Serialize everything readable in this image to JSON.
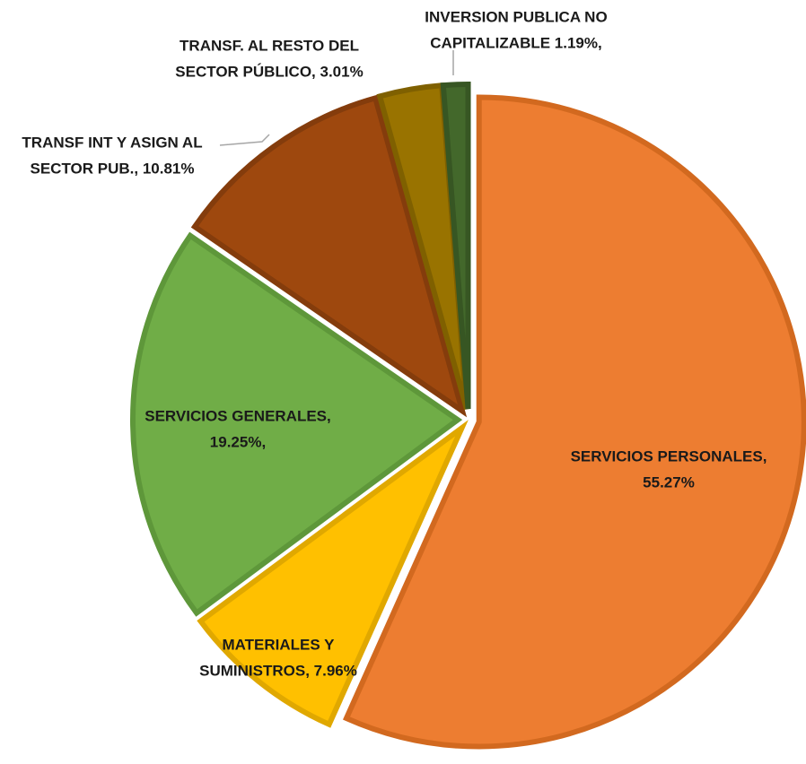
{
  "chart_data": {
    "type": "pie",
    "values": [
      55.27,
      7.96,
      19.25,
      10.81,
      3.01,
      1.19
    ],
    "value_labels": [
      [
        "SERVICIOS PERSONALES,",
        "55.27%"
      ],
      [
        "MATERIALES Y",
        "SUMINISTROS, 7.96%"
      ],
      [
        "SERVICIOS GENERALES,",
        "19.25%,"
      ],
      [
        "TRANSF INT Y ASIGN AL",
        "SECTOR PUB., 10.81%"
      ],
      [
        "TRANSF. AL RESTO DEL",
        "SECTOR PÚBLICO, 3.01%"
      ],
      [
        "INVERSION PUBLICA NO",
        "CAPITALIZABLE  1.19%,"
      ]
    ],
    "colors": [
      "#ed7d31",
      "#ffc000",
      "#70ad47",
      "#9e480e",
      "#997300",
      "#43682b"
    ],
    "edge_colors": [
      "#d2691f",
      "#e0a800",
      "#5e973a",
      "#843c0c",
      "#7f6000",
      "#375623"
    ]
  }
}
